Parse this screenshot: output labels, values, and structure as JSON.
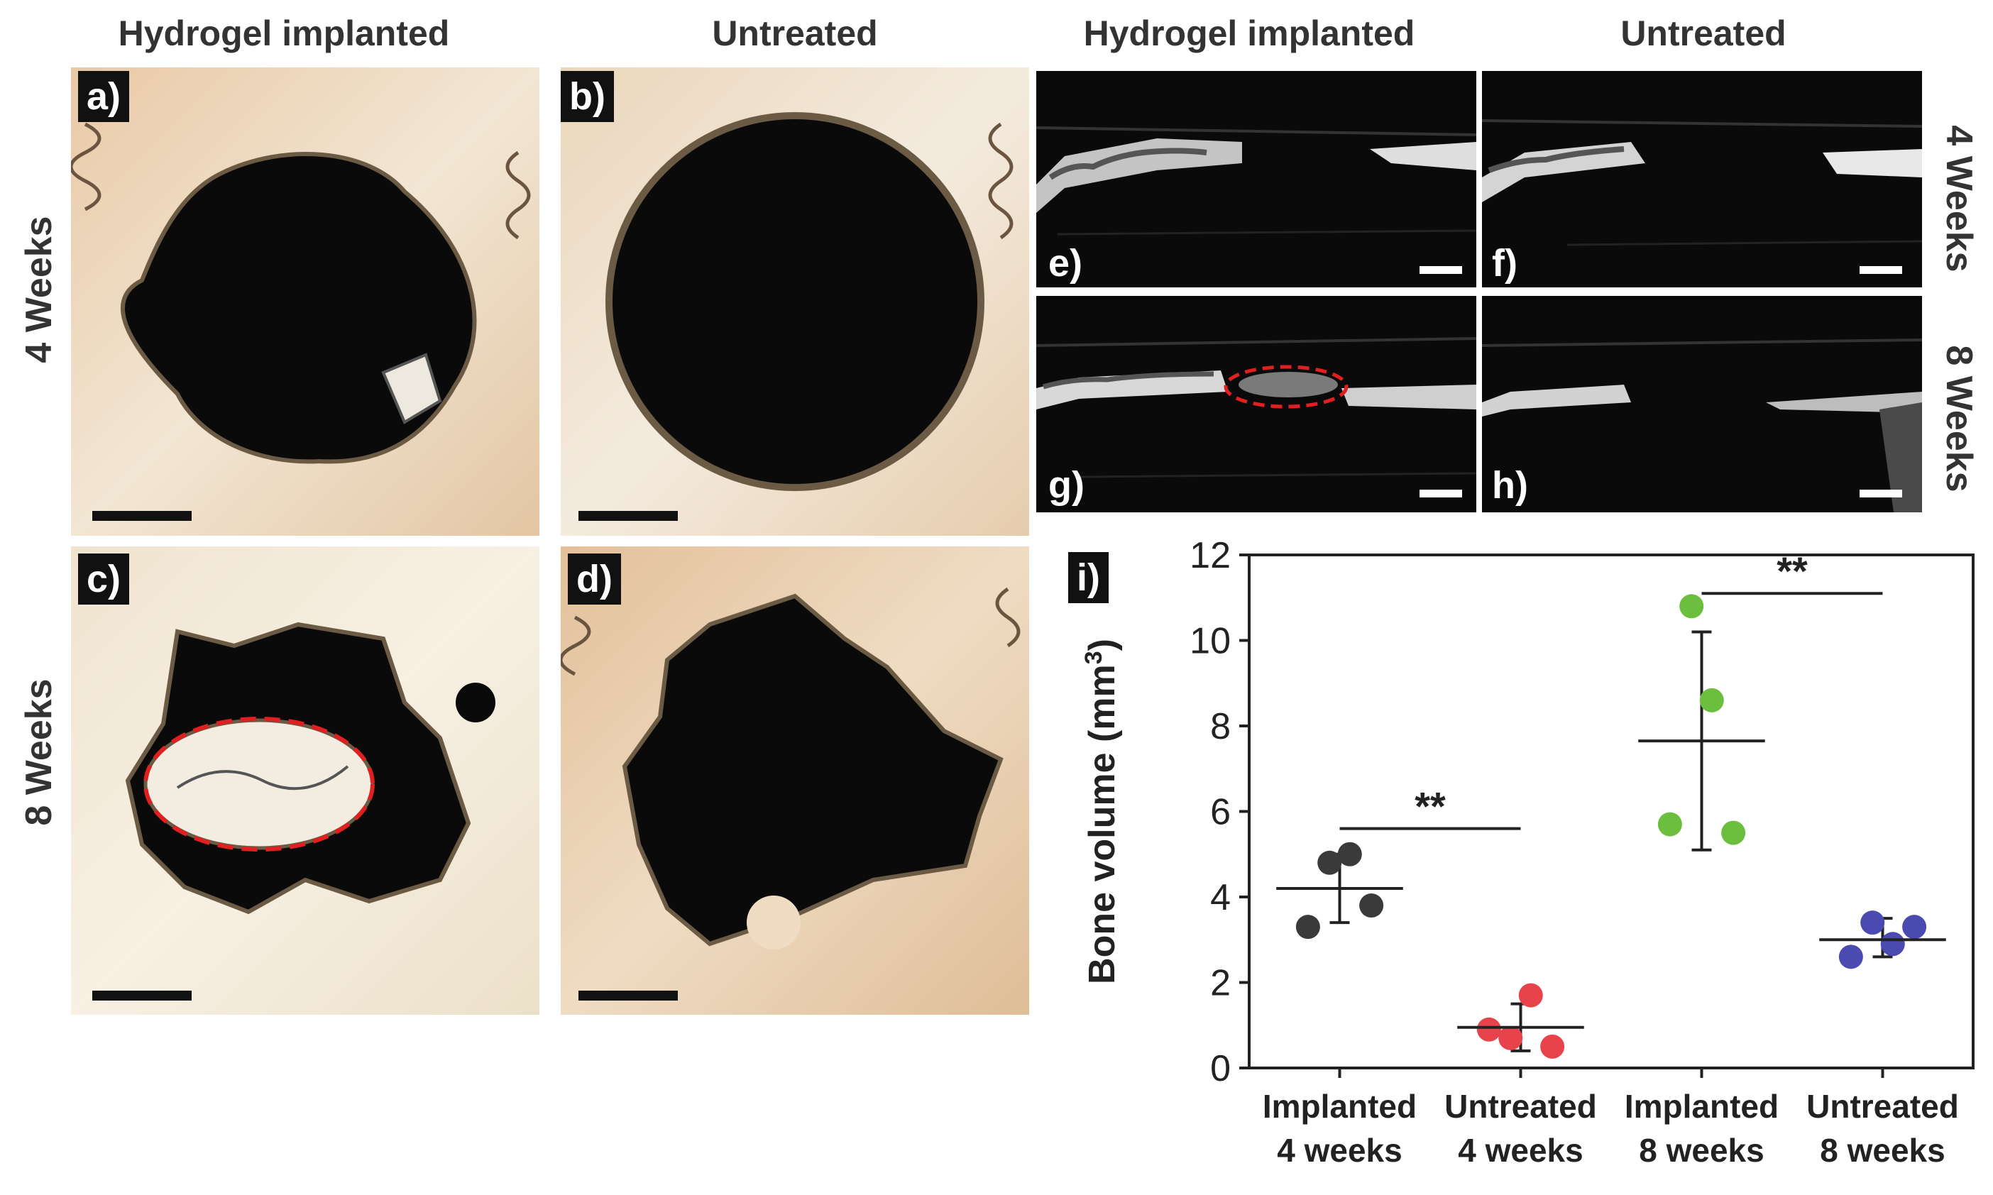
{
  "figure": {
    "col_headers": [
      "Hydrogel implanted",
      "Untreated",
      "Hydrogel implanted",
      "Untreated"
    ],
    "row_labels_left": [
      "4 Weeks",
      "8 Weeks"
    ],
    "row_labels_right": [
      "4 Weeks",
      "8 Weeks"
    ],
    "panels": {
      "a": "a)",
      "b": "b)",
      "c": "c)",
      "d": "d)",
      "e": "e)",
      "f": "f)",
      "g": "g)",
      "h": "h)",
      "i": "i)"
    }
  },
  "colors": {
    "implanted_4w": "#3a3a3a",
    "untreated_4w": "#e8434a",
    "implanted_8w": "#6cbf3e",
    "untreated_8w": "#4a4ab0",
    "highlight": "#e02020"
  },
  "chart_data": {
    "type": "scatter",
    "ylabel": "Bone volume (mm",
    "ylabel_sup": "3",
    "ylabel_close": ")",
    "ylim": [
      0,
      12
    ],
    "yticks": [
      "0",
      "2",
      "4",
      "6",
      "8",
      "10",
      "12"
    ],
    "categories": [
      [
        "Implanted",
        "4 weeks"
      ],
      [
        "Untreated",
        "4 weeks"
      ],
      [
        "Implanted",
        "8 weeks"
      ],
      [
        "Untreated",
        "8 weeks"
      ]
    ],
    "series": [
      {
        "points": [
          3.3,
          4.8,
          5.0,
          3.8
        ],
        "mean": 4.2,
        "err": [
          3.4,
          5.0
        ]
      },
      {
        "points": [
          0.9,
          0.7,
          1.7,
          0.5
        ],
        "mean": 0.95,
        "err": [
          0.4,
          1.5
        ]
      },
      {
        "points": [
          5.7,
          10.8,
          8.6,
          5.5
        ],
        "mean": 7.65,
        "err": [
          5.1,
          10.2
        ]
      },
      {
        "points": [
          2.6,
          3.4,
          2.9,
          3.3
        ],
        "mean": 3.0,
        "err": [
          2.6,
          3.5
        ]
      }
    ],
    "significance": [
      {
        "from": 0,
        "to": 1,
        "y": 5.6,
        "label": "**"
      },
      {
        "from": 2,
        "to": 3,
        "y": 11.1,
        "label": "**"
      }
    ]
  }
}
